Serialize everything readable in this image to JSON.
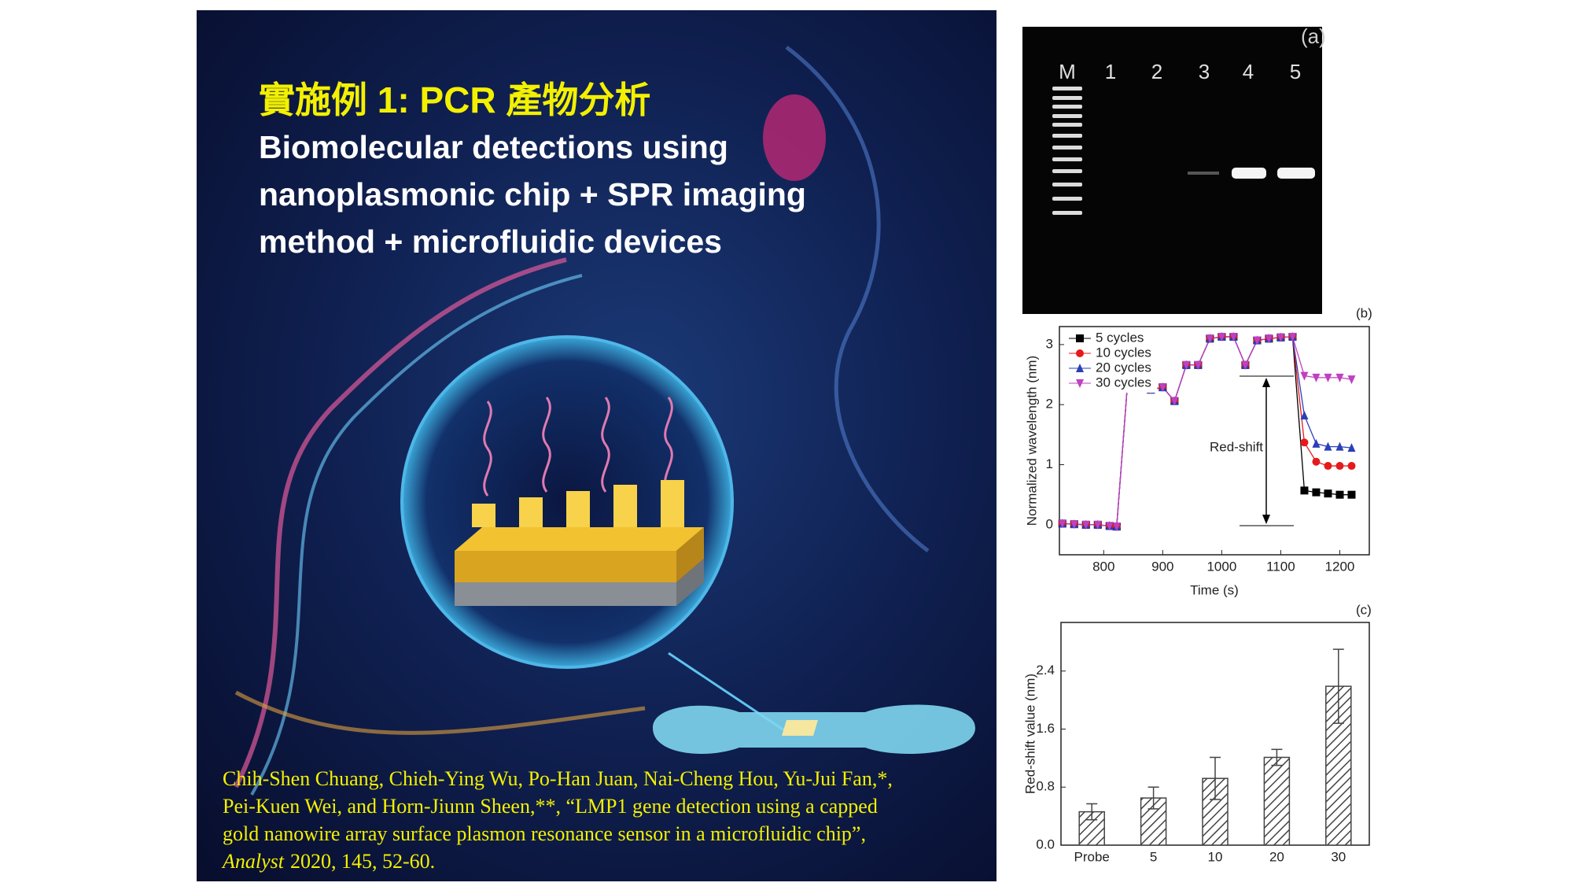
{
  "slide": {
    "heading": "實施例  1:  PCR 產物分析",
    "subtitle_lines": [
      "Biomolecular detections using",
      "nanoplasmonic chip + SPR imaging",
      "method +  microfluidic devices"
    ],
    "citation_lines": [
      "Chih-Shen Chuang, Chieh-Ying Wu, Po-Han Juan, Nai-Cheng Hou, Yu-Jui Fan,*,",
      "Pei-Kuen Wei, and Horn-Jiunn Sheen,**, “LMP1 gene detection using a capped",
      "gold nanowire array surface plasmon resonance sensor in a microfluidic chip”,"
    ],
    "citation_journal": "Analyst",
    "citation_details": "2020, 145, 52-60."
  },
  "gel": {
    "panel_label": "(a)",
    "lanes": [
      "M",
      "1",
      "2",
      "3",
      "4",
      "5"
    ]
  },
  "chart_data": [
    {
      "type": "line",
      "panel_label": "(b)",
      "xlabel": "Time (s)",
      "ylabel": "Normalized wavelength (nm)",
      "x": [
        730,
        750,
        770,
        790,
        810,
        822,
        840,
        860,
        880,
        900,
        920,
        940,
        960,
        980,
        1000,
        1020,
        1040,
        1060,
        1080,
        1100,
        1120,
        1140,
        1160,
        1180,
        1200,
        1220
      ],
      "series": [
        {
          "name": "5 cycles",
          "color": "#000000",
          "marker": "square",
          "values": [
            0.02,
            0.01,
            0.0,
            0.0,
            -0.02,
            -0.03,
            2.3,
            2.3,
            2.25,
            2.29,
            2.06,
            2.66,
            2.66,
            3.1,
            3.13,
            3.13,
            2.66,
            3.07,
            3.1,
            3.12,
            3.13,
            0.57,
            0.54,
            0.52,
            0.5,
            0.5
          ]
        },
        {
          "name": "10 cycles",
          "color": "#e41a1c",
          "marker": "circle",
          "values": [
            0.02,
            0.01,
            0.0,
            0.0,
            -0.02,
            -0.03,
            2.3,
            2.3,
            2.25,
            2.29,
            2.06,
            2.66,
            2.66,
            3.1,
            3.13,
            3.13,
            2.66,
            3.07,
            3.1,
            3.12,
            3.13,
            1.37,
            1.05,
            0.98,
            0.98,
            0.98
          ]
        },
        {
          "name": "20 cycles",
          "color": "#2b3fb8",
          "marker": "triangle",
          "values": [
            0.02,
            0.01,
            0.0,
            0.0,
            -0.02,
            -0.03,
            2.3,
            2.3,
            2.25,
            2.29,
            2.06,
            2.66,
            2.66,
            3.1,
            3.13,
            3.13,
            2.66,
            3.07,
            3.1,
            3.12,
            3.13,
            1.82,
            1.35,
            1.3,
            1.3,
            1.28
          ]
        },
        {
          "name": "30 cycles",
          "color": "#c040c0",
          "marker": "triangle-down",
          "values": [
            0.02,
            0.01,
            0.0,
            0.0,
            -0.02,
            -0.03,
            2.3,
            2.3,
            2.25,
            2.29,
            2.06,
            2.66,
            2.66,
            3.1,
            3.13,
            3.13,
            2.66,
            3.07,
            3.1,
            3.12,
            3.13,
            2.48,
            2.45,
            2.45,
            2.45,
            2.42
          ]
        }
      ],
      "xlim": [
        725,
        1250
      ],
      "xticks": [
        800,
        900,
        1000,
        1100,
        1200
      ],
      "ylim": [
        -0.5,
        3.3
      ],
      "yticks": [
        0,
        1,
        2,
        3
      ],
      "annotation": "Red-shift",
      "legend": "upper left"
    },
    {
      "type": "bar",
      "panel_label": "(c)",
      "ylabel": "Red-shift value (nm)",
      "categories": [
        "Probe",
        "5",
        "10",
        "20",
        "30"
      ],
      "values": [
        0.46,
        0.65,
        0.92,
        1.21,
        2.19
      ],
      "errors": [
        0.11,
        0.15,
        0.29,
        0.11,
        0.51
      ],
      "color": "#444444",
      "ylim": [
        0,
        3.07
      ],
      "yticks": [
        {
          "value": 0,
          "label": "0.0"
        },
        {
          "value": 0.8,
          "label": "0.8"
        },
        {
          "value": 1.6,
          "label": "1.6"
        },
        {
          "value": 2.4,
          "label": "2.4"
        }
      ]
    }
  ]
}
